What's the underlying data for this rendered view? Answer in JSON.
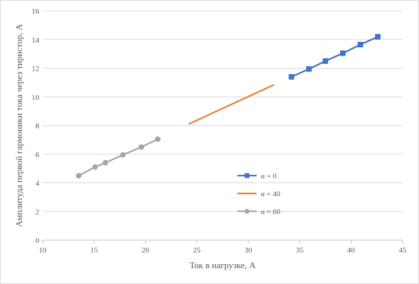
{
  "chart_data": {
    "type": "scatter",
    "title": "",
    "xlabel": "Ток в нагрузке, А",
    "ylabel": "Амплитуда первой гармоники тока через тиристор, А",
    "xlim": [
      10,
      45
    ],
    "ylim": [
      0,
      16
    ],
    "xticks": [
      10,
      15,
      20,
      25,
      30,
      35,
      40,
      45
    ],
    "yticks": [
      0,
      2,
      4,
      6,
      8,
      10,
      12,
      14,
      16
    ],
    "xtick_labels": [
      "10",
      "15",
      "20",
      "25",
      "30",
      "35",
      "40",
      "45"
    ],
    "ytick_labels": [
      "0",
      "2",
      "4",
      "6",
      "8",
      "10",
      "12",
      "14",
      "16"
    ],
    "grid": "horizontal",
    "legend_position": "center-right",
    "series": [
      {
        "name": "α = 0",
        "color": "#4472c4",
        "marker": "square",
        "x": [
          34.2,
          35.9,
          37.5,
          39.2,
          40.9,
          42.6
        ],
        "y": [
          11.4,
          11.95,
          12.5,
          13.05,
          13.65,
          14.2
        ]
      },
      {
        "name": "α = 40",
        "color": "#ed7d31",
        "marker": "none",
        "x": [
          24.2,
          32.5
        ],
        "y": [
          8.1,
          10.85
        ]
      },
      {
        "name": "α = 60",
        "color": "#a5a5a5",
        "marker": "circle",
        "x": [
          13.5,
          15.1,
          16.1,
          17.8,
          19.6,
          21.2
        ],
        "y": [
          4.5,
          5.1,
          5.4,
          5.95,
          6.5,
          7.05
        ]
      }
    ]
  }
}
